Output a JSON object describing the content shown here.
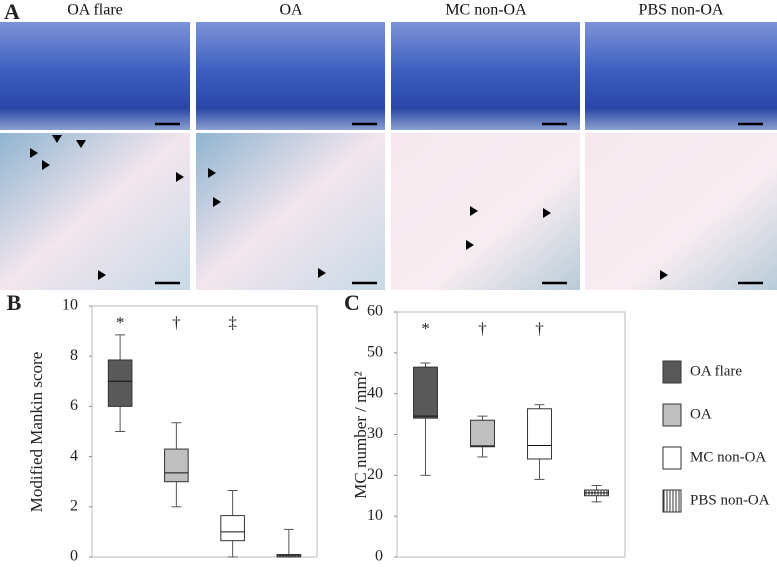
{
  "figure": {
    "panel_label": "A",
    "columns": [
      "OA flare",
      "OA",
      "MC non-OA",
      "PBS non-OA"
    ]
  },
  "chart_data": [
    {
      "type": "box",
      "panel_label": "B",
      "y_label": "Modified Mankin score",
      "categories": [
        null,
        null,
        null,
        null
      ],
      "ylim": [
        0,
        10
      ],
      "yticks": [
        0,
        2,
        4,
        6,
        8,
        10
      ],
      "boxes": [
        {
          "color": "#595959",
          "min": 5,
          "q1": 6,
          "median": 7,
          "q3": 7.85,
          "max": 8.85
        },
        {
          "color": "#bfbfbf",
          "min": 2,
          "q1": 3,
          "median": 3.35,
          "q3": 4.3,
          "max": 5.35
        },
        {
          "color": "#ffffff",
          "min": 0,
          "q1": 0.65,
          "median": 1,
          "q3": 1.65,
          "max": 2.65
        },
        {
          "color": "#ffffff",
          "hatch": "vertical",
          "min": 0,
          "q1": 0,
          "median": 0.05,
          "q3": 0.1,
          "max": 1.1
        }
      ],
      "annotations": [
        "*",
        "†",
        "‡"
      ]
    },
    {
      "type": "box",
      "panel_label": "C",
      "y_label": "MC number / mm²",
      "categories": [
        null,
        null,
        null,
        null
      ],
      "ylim": [
        0,
        60
      ],
      "yticks": [
        0,
        10,
        20,
        30,
        40,
        50,
        60
      ],
      "boxes": [
        {
          "name": "OA flare",
          "color": "#595959",
          "min": 20,
          "q1": 34,
          "median": 34.5,
          "q3": 46.5,
          "max": 47.5
        },
        {
          "name": "OA",
          "color": "#bfbfbf",
          "min": 24.5,
          "q1": 27,
          "median": 27.2,
          "q3": 33.5,
          "max": 34.5
        },
        {
          "name": "MC non-OA",
          "color": "#ffffff",
          "min": 19,
          "q1": 24,
          "median": 27.3,
          "q3": 36.3,
          "max": 37.3
        },
        {
          "name": "PBS non-OA",
          "color": "#ffffff",
          "hatch": "vertical",
          "min": 13.5,
          "q1": 15,
          "median": 15.7,
          "q3": 16.4,
          "max": 17.5
        }
      ],
      "annotations": [
        "*",
        "†",
        "†"
      ],
      "legend": "right"
    }
  ]
}
